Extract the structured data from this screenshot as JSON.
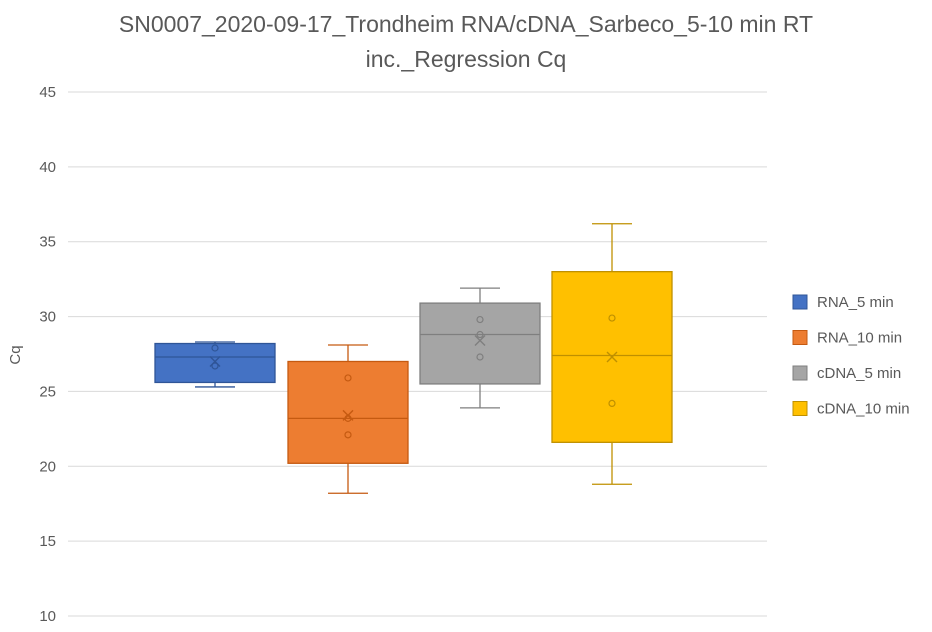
{
  "chart_data": {
    "type": "box",
    "title_lines": [
      "SN0007_2020-09-17_Trondheim RNA/cDNA_Sarbeco_5-10 min RT",
      "inc._Regression Cq"
    ],
    "xlabel": "",
    "ylabel": "Cq",
    "ylim": [
      10,
      45
    ],
    "yticks": [
      10,
      15,
      20,
      25,
      30,
      35,
      40,
      45
    ],
    "grid": true,
    "legend_position": "right",
    "series": [
      {
        "name": "RNA_5 min",
        "color": "#4472C4",
        "stroke": "#2F5597",
        "min": 25.3,
        "q1": 25.6,
        "median": 27.3,
        "q3": 28.2,
        "max": 28.3,
        "mean": 27.0,
        "points": [
          27.9,
          26.7
        ]
      },
      {
        "name": "RNA_10 min",
        "color": "#ED7D31",
        "stroke": "#C55A11",
        "min": 18.2,
        "q1": 20.2,
        "median": 23.2,
        "q3": 27.0,
        "max": 28.1,
        "mean": 23.4,
        "points": [
          25.9,
          23.2,
          22.1
        ]
      },
      {
        "name": "cDNA_5 min",
        "color": "#A5A5A5",
        "stroke": "#7F7F7F",
        "min": 23.9,
        "q1": 25.5,
        "median": 28.8,
        "q3": 30.9,
        "max": 31.9,
        "mean": 28.4,
        "points": [
          29.8,
          28.8,
          27.3
        ]
      },
      {
        "name": "cDNA_10 min",
        "color": "#FFC000",
        "stroke": "#BF9000",
        "min": 18.8,
        "q1": 21.6,
        "median": 27.4,
        "q3": 33.0,
        "max": 36.2,
        "mean": 27.3,
        "points": [
          29.9,
          24.2
        ]
      }
    ]
  }
}
